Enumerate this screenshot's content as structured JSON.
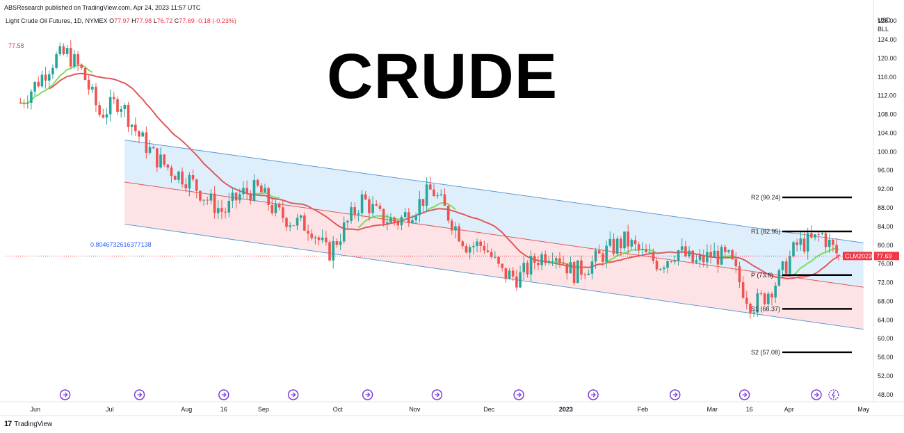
{
  "header": {
    "publisher": "ABSResearch published on TradingView.com, Apr 24, 2023 11:57 UTC",
    "instrument": "Light Crude Oil Futures, 1D, NYMEX",
    "ohlc": {
      "o_label": "O",
      "o": "77.97",
      "h_label": "H",
      "h": "77.98",
      "l_label": "L",
      "l": "76.72",
      "c_label": "C",
      "c": "77.69",
      "change": "-0.18 (-0.23%)"
    },
    "last_label": "77.58"
  },
  "overlay_title": "CRUDE",
  "axis": {
    "currency": "USD",
    "unit": "BLL"
  },
  "fib_label": "0.8046732616377138",
  "symbol_tag": "CLM2023",
  "price_tag": "77.69",
  "footer": {
    "logo": "17",
    "brand": "TradingView"
  },
  "colors": {
    "up": "#26a69a",
    "down": "#ef5350",
    "channel_blue": "#dcecfb",
    "channel_pink": "#fde0e2",
    "ma_red": "#e0585a",
    "ma_green": "#6fdc4f",
    "channel_line": "#5b9bd5",
    "text": "#131722",
    "price_tag_bg": "#f23645",
    "events": "#7b3fd6"
  },
  "chart_data": {
    "type": "candlestick",
    "ylim": [
      46.5,
      129.5
    ],
    "y_ticks": [
      "128.00",
      "124.00",
      "120.00",
      "116.00",
      "112.00",
      "108.00",
      "104.00",
      "100.00",
      "96.00",
      "92.00",
      "88.00",
      "84.00",
      "80.00",
      "76.00",
      "72.00",
      "68.00",
      "64.00",
      "60.00",
      "56.00",
      "52.00",
      "48.00"
    ],
    "x_ticks": [
      {
        "label": "Jun",
        "date": "2022-06-01"
      },
      {
        "label": "Jul",
        "date": "2022-07-01"
      },
      {
        "label": "Aug",
        "date": "2022-08-01"
      },
      {
        "label": "16",
        "date": "2022-08-16"
      },
      {
        "label": "Sep",
        "date": "2022-09-01"
      },
      {
        "label": "Oct",
        "date": "2022-10-01"
      },
      {
        "label": "Nov",
        "date": "2022-11-01"
      },
      {
        "label": "Dec",
        "date": "2022-12-01"
      },
      {
        "label": "2023",
        "date": "2023-01-01"
      },
      {
        "label": "Feb",
        "date": "2023-02-01"
      },
      {
        "label": "Mar",
        "date": "2023-03-01"
      },
      {
        "label": "16",
        "date": "2023-03-16"
      },
      {
        "label": "Apr",
        "date": "2023-04-01"
      },
      {
        "label": "May",
        "date": "2023-05-01"
      }
    ],
    "closes": [
      {
        "date": "2022-05-26",
        "close": 110.5
      },
      {
        "date": "2022-06-02",
        "close": 115
      },
      {
        "date": "2022-06-09",
        "close": 120
      },
      {
        "date": "2022-06-14",
        "close": 121
      },
      {
        "date": "2022-06-20",
        "close": 117
      },
      {
        "date": "2022-06-27",
        "close": 108
      },
      {
        "date": "2022-07-05",
        "close": 111
      },
      {
        "date": "2022-07-12",
        "close": 104
      },
      {
        "date": "2022-07-19",
        "close": 99
      },
      {
        "date": "2022-07-26",
        "close": 96
      },
      {
        "date": "2022-08-02",
        "close": 94
      },
      {
        "date": "2022-08-09",
        "close": 90
      },
      {
        "date": "2022-08-16",
        "close": 87
      },
      {
        "date": "2022-08-23",
        "close": 91
      },
      {
        "date": "2022-08-30",
        "close": 92
      },
      {
        "date": "2022-09-06",
        "close": 87
      },
      {
        "date": "2022-09-13",
        "close": 85
      },
      {
        "date": "2022-09-20",
        "close": 84
      },
      {
        "date": "2022-09-27",
        "close": 78
      },
      {
        "date": "2022-10-04",
        "close": 84
      },
      {
        "date": "2022-10-11",
        "close": 90
      },
      {
        "date": "2022-10-18",
        "close": 86
      },
      {
        "date": "2022-10-25",
        "close": 85
      },
      {
        "date": "2022-11-01",
        "close": 88
      },
      {
        "date": "2022-11-08",
        "close": 92
      },
      {
        "date": "2022-11-15",
        "close": 86
      },
      {
        "date": "2022-11-22",
        "close": 80
      },
      {
        "date": "2022-11-29",
        "close": 80
      },
      {
        "date": "2022-12-06",
        "close": 74
      },
      {
        "date": "2022-12-13",
        "close": 73
      },
      {
        "date": "2022-12-20",
        "close": 77
      },
      {
        "date": "2022-12-27",
        "close": 79
      },
      {
        "date": "2023-01-04",
        "close": 74
      },
      {
        "date": "2023-01-11",
        "close": 76
      },
      {
        "date": "2023-01-18",
        "close": 79
      },
      {
        "date": "2023-01-25",
        "close": 81
      },
      {
        "date": "2023-02-01",
        "close": 78
      },
      {
        "date": "2023-02-08",
        "close": 76
      },
      {
        "date": "2023-02-15",
        "close": 79
      },
      {
        "date": "2023-02-22",
        "close": 76
      },
      {
        "date": "2023-03-01",
        "close": 78
      },
      {
        "date": "2023-03-08",
        "close": 77
      },
      {
        "date": "2023-03-13",
        "close": 71
      },
      {
        "date": "2023-03-17",
        "close": 67
      },
      {
        "date": "2023-03-22",
        "close": 69
      },
      {
        "date": "2023-03-28",
        "close": 73
      },
      {
        "date": "2023-04-04",
        "close": 80
      },
      {
        "date": "2023-04-11",
        "close": 81
      },
      {
        "date": "2023-04-14",
        "close": 82.5
      },
      {
        "date": "2023-04-19",
        "close": 79
      },
      {
        "date": "2023-04-21",
        "close": 77.7
      }
    ],
    "channel": {
      "start_date": "2022-07-07",
      "end_date": "2023-05-01",
      "upper": [
        102.5,
        80.5
      ],
      "mid": [
        93.5,
        71.0
      ],
      "lower": [
        84.5,
        62.0
      ]
    },
    "pivots": [
      {
        "label": "R2",
        "value": 90.24,
        "text": "R2 (90.24)"
      },
      {
        "label": "R1",
        "value": 82.95,
        "text": "R1 (82.95)"
      },
      {
        "label": "P",
        "value": 73.6,
        "text": "P (73.6)"
      },
      {
        "label": "S1",
        "value": 66.37,
        "text": "S1 (66.37)"
      },
      {
        "label": "S2",
        "value": 57.08,
        "text": "S2 (57.08)"
      }
    ],
    "last_price": 77.69,
    "event_dates": [
      "2022-06-13",
      "2022-07-13",
      "2022-08-16",
      "2022-09-13",
      "2022-10-13",
      "2022-11-10",
      "2022-12-13",
      "2023-01-12",
      "2023-02-14",
      "2023-03-14",
      "2023-04-12"
    ],
    "event_last_date": "2023-04-19"
  }
}
